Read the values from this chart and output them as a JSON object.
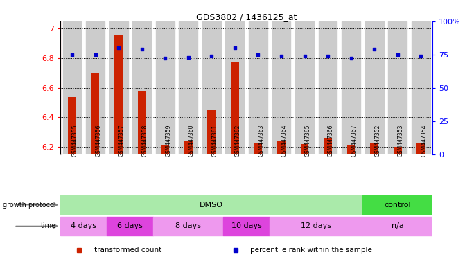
{
  "title": "GDS3802 / 1436125_at",
  "samples": [
    "GSM447355",
    "GSM447356",
    "GSM447357",
    "GSM447358",
    "GSM447359",
    "GSM447360",
    "GSM447361",
    "GSM447362",
    "GSM447363",
    "GSM447364",
    "GSM447365",
    "GSM447366",
    "GSM447367",
    "GSM447352",
    "GSM447353",
    "GSM447354"
  ],
  "transformed_count": [
    6.54,
    6.7,
    6.96,
    6.58,
    6.21,
    6.24,
    6.45,
    6.77,
    6.23,
    6.24,
    6.22,
    6.26,
    6.21,
    6.23,
    6.2,
    6.23
  ],
  "percentile_rank": [
    75,
    75,
    80,
    79,
    72,
    73,
    74,
    80,
    75,
    74,
    74,
    74,
    72,
    79,
    75,
    74
  ],
  "ylim_left": [
    6.15,
    7.05
  ],
  "ylim_right": [
    0,
    100
  ],
  "yticks_left": [
    6.2,
    6.4,
    6.6,
    6.8,
    7.0
  ],
  "ytick_left_labels": [
    "6.2",
    "6.4",
    "6.6",
    "6.8",
    "7"
  ],
  "yticks_right": [
    0,
    25,
    50,
    75,
    100
  ],
  "ytick_right_labels": [
    "0",
    "25",
    "50",
    "75",
    "100%"
  ],
  "bar_color": "#cc2200",
  "dot_color": "#0000cc",
  "background_color": "#ffffff",
  "bar_bg_color": "#cccccc",
  "growth_protocol_label": "growth protocol",
  "growth_protocol_groups": [
    {
      "text": "DMSO",
      "start": 0,
      "end": 13,
      "color": "#aaeaaa"
    },
    {
      "text": "control",
      "start": 13,
      "end": 16,
      "color": "#44dd44"
    }
  ],
  "time_label": "time",
  "time_groups": [
    {
      "text": "4 days",
      "start": 0,
      "end": 2,
      "color": "#ee99ee"
    },
    {
      "text": "6 days",
      "start": 2,
      "end": 4,
      "color": "#dd44dd"
    },
    {
      "text": "8 days",
      "start": 4,
      "end": 7,
      "color": "#ee99ee"
    },
    {
      "text": "10 days",
      "start": 7,
      "end": 9,
      "color": "#dd44dd"
    },
    {
      "text": "12 days",
      "start": 9,
      "end": 13,
      "color": "#ee99ee"
    },
    {
      "text": "n/a",
      "start": 13,
      "end": 16,
      "color": "#ee99ee"
    }
  ],
  "legend_items": [
    {
      "label": "transformed count",
      "color": "#cc2200"
    },
    {
      "label": "percentile rank within the sample",
      "color": "#0000cc"
    }
  ]
}
